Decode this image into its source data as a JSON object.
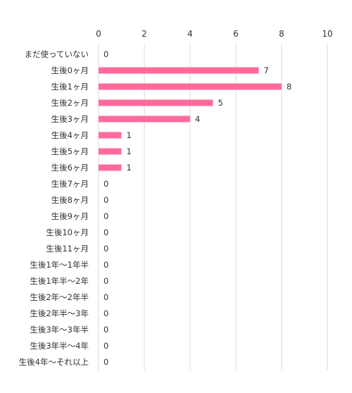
{
  "chart_data": {
    "type": "bar",
    "orientation": "horizontal",
    "categories": [
      "まだ使っていない",
      "生後0ヶ月",
      "生後1ヶ月",
      "生後2ヶ月",
      "生後3ヶ月",
      "生後4ヶ月",
      "生後5ヶ月",
      "生後6ヶ月",
      "生後7ヶ月",
      "生後8ヶ月",
      "生後9ヶ月",
      "生後10ヶ月",
      "生後11ヶ月",
      "生後1年〜1年半",
      "生後1年半〜2年",
      "生後2年〜2年半",
      "生後2年半〜3年",
      "生後3年〜3年半",
      "生後3年半〜4年",
      "生後4年〜それ以上"
    ],
    "values": [
      0,
      7,
      8,
      5,
      4,
      1,
      1,
      1,
      0,
      0,
      0,
      0,
      0,
      0,
      0,
      0,
      0,
      0,
      0,
      0
    ],
    "xlim": [
      0,
      10
    ],
    "xticks": [
      0,
      2,
      4,
      6,
      8,
      10
    ],
    "grid": true,
    "legend": "none",
    "bar_color": "#ff6b99",
    "grid_color": "#d9d9d9",
    "text_color": "#333333"
  }
}
